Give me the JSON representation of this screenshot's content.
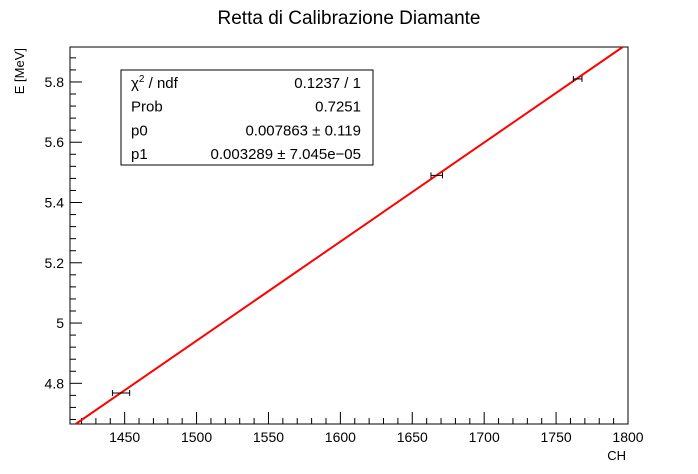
{
  "chart_data": {
    "type": "scatter",
    "title": "Retta di Calibrazione Diamante",
    "xlabel": "CH",
    "ylabel": "E [MeV]",
    "xlim": [
      1412,
      1800
    ],
    "ylim": [
      4.665,
      5.916
    ],
    "x_ticks": [
      1450,
      1500,
      1550,
      1600,
      1650,
      1700,
      1750,
      1800
    ],
    "x_tick_labels": [
      "1450",
      "1500",
      "1550",
      "1600",
      "1650",
      "1700",
      "1750",
      "1800"
    ],
    "y_ticks": [
      4.8,
      5.0,
      5.2,
      5.4,
      5.6,
      5.8
    ],
    "y_tick_labels": [
      "4.8",
      "5",
      "5.2",
      "5.4",
      "5.6",
      "5.8"
    ],
    "grid": false,
    "points": [
      {
        "x": 1447.5,
        "y": 4.768,
        "xerr": 6
      },
      {
        "x": 1667.0,
        "y": 5.49,
        "xerr": 4
      },
      {
        "x": 1765.0,
        "y": 5.81,
        "xerr": 3
      }
    ],
    "fit": {
      "p0": 0.007863,
      "p1": 0.003289,
      "color": "#ff0000"
    },
    "stats_box": {
      "position": "top-left",
      "rows": [
        {
          "label_base": "χ",
          "label_sup": "2",
          "label_rest": " / ndf",
          "value": "0.1237 / 1"
        },
        {
          "label_base": "Prob",
          "label_sup": "",
          "label_rest": "",
          "value": "0.7251"
        },
        {
          "label_base": "p0",
          "label_sup": "",
          "label_rest": "",
          "value": "0.007863 ± 0.119"
        },
        {
          "label_base": "p1",
          "label_sup": "",
          "label_rest": "",
          "value": "0.003289 ± 7.045e−05"
        }
      ]
    }
  }
}
